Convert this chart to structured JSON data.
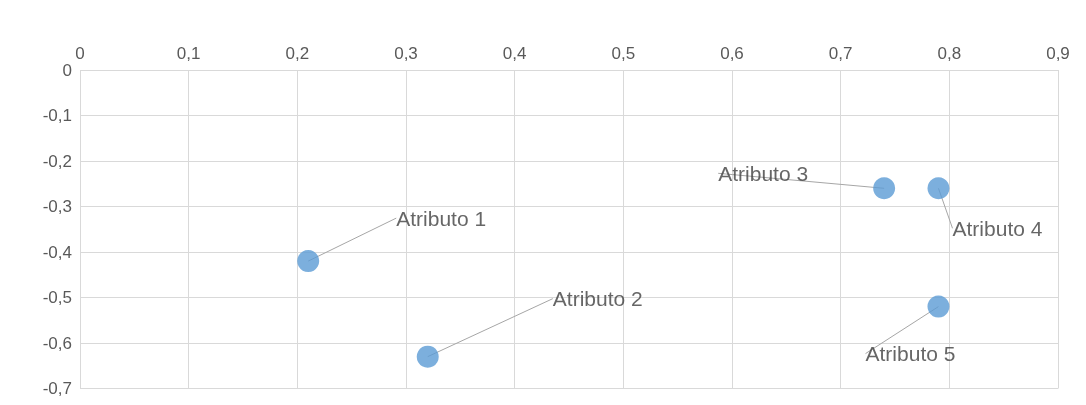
{
  "chart_data": {
    "type": "scatter",
    "x": [
      0.21,
      0.32,
      0.74,
      0.79,
      0.79
    ],
    "values": [
      -0.42,
      -0.63,
      -0.26,
      -0.26,
      -0.52
    ],
    "color": "#5b9bd5",
    "marker": "circle",
    "annotations": [
      {
        "text": "Atributo 1",
        "x": 0.21,
        "y": -0.42
      },
      {
        "text": "Atributo 2",
        "x": 0.32,
        "y": -0.63
      },
      {
        "text": "Atributo 3",
        "x": 0.74,
        "y": -0.26
      },
      {
        "text": "Atributo 4",
        "x": 0.79,
        "y": -0.26
      },
      {
        "text": "Atributo 5",
        "x": 0.79,
        "y": -0.52
      }
    ],
    "xlim": [
      0,
      0.9
    ],
    "xticks": [
      0,
      {
        "value": 0.1,
        "label": "0,1"
      },
      {
        "value": 0.2,
        "label": "0,2"
      },
      {
        "value": 0.3,
        "label": "0,3"
      },
      {
        "value": 0.4,
        "label": "0,4"
      },
      {
        "value": 0.5,
        "label": "0,5"
      },
      {
        "value": 0.6,
        "label": "0,6"
      },
      {
        "value": 0.7,
        "label": "0,7"
      },
      {
        "value": 0.8,
        "label": "0,8"
      },
      {
        "value": 0.9,
        "label": "0,9"
      }
    ],
    "ylim": [
      -0.7,
      0
    ],
    "yticks": [
      0,
      {
        "value": -0.1,
        "label": "-0,1"
      },
      {
        "value": -0.2,
        "label": "-0,2"
      },
      {
        "value": -0.3,
        "label": "-0,3"
      },
      {
        "value": -0.4,
        "label": "-0,4"
      },
      {
        "value": -0.5,
        "label": "-0,5"
      },
      {
        "value": -0.6,
        "label": "-0,6"
      },
      {
        "value": -0.7,
        "label": "-0,7"
      }
    ],
    "grid": true
  }
}
